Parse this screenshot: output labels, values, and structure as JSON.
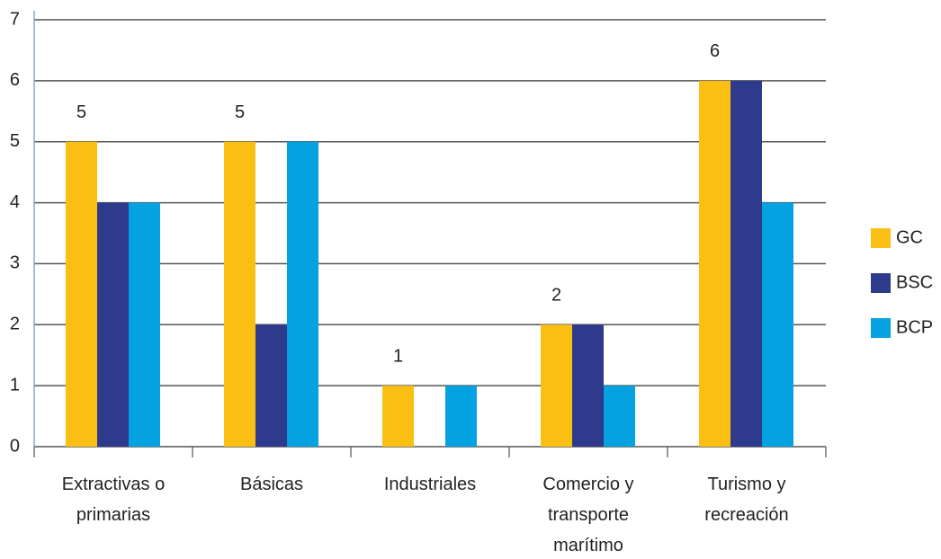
{
  "chart_data": {
    "type": "bar",
    "categories": [
      "Extractivas o primarias",
      "Básicas",
      "Industriales",
      "Comercio y transporte marítimo",
      "Turismo y recreación"
    ],
    "series": [
      {
        "name": "GC",
        "color": "#fbbf14",
        "values": [
          5,
          5,
          1,
          2,
          6
        ]
      },
      {
        "name": "BSC",
        "color": "#2e3a8c",
        "values": [
          4,
          2,
          0,
          2,
          6
        ]
      },
      {
        "name": "BCP",
        "color": "#04a2e0",
        "values": [
          4,
          5,
          1,
          1,
          4
        ]
      }
    ],
    "data_labels_series": "GC",
    "ylim": [
      0,
      7
    ],
    "yticks": [
      0,
      1,
      2,
      3,
      4,
      5,
      6,
      7
    ],
    "grid": true,
    "legend": "right"
  }
}
